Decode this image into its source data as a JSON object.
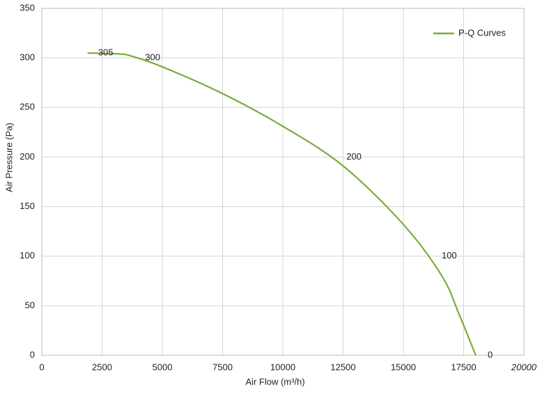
{
  "chart_data": {
    "type": "line",
    "x_label": "Air Flow  (m³/h)",
    "y_label": "Air Pressure  (Pa)",
    "x": [
      1900,
      3200,
      3700,
      5000,
      7500,
      10000,
      12500,
      15000,
      16600,
      17300,
      18000
    ],
    "series": [
      {
        "name": "P-Q Curves",
        "color": "#7aab3a",
        "values": [
          305,
          304,
          302,
          291,
          264,
          231,
          191,
          132,
          80,
          42,
          0
        ]
      }
    ],
    "point_labels": [
      {
        "x": 2650,
        "y": 305
      },
      {
        "x": 4600,
        "y": 300
      },
      {
        "x": 12950,
        "y": 200
      },
      {
        "x": 16900,
        "y": 100
      },
      {
        "x": 18600,
        "y": 0
      }
    ],
    "xlim": [
      0,
      20000
    ],
    "xticks": [
      0,
      2500,
      5000,
      7500,
      10000,
      12500,
      15000,
      17500,
      20000
    ],
    "ylim": [
      0,
      350
    ],
    "yticks": [
      0,
      50,
      100,
      150,
      200,
      250,
      300,
      350
    ],
    "grid": true,
    "legend": "upper right"
  }
}
